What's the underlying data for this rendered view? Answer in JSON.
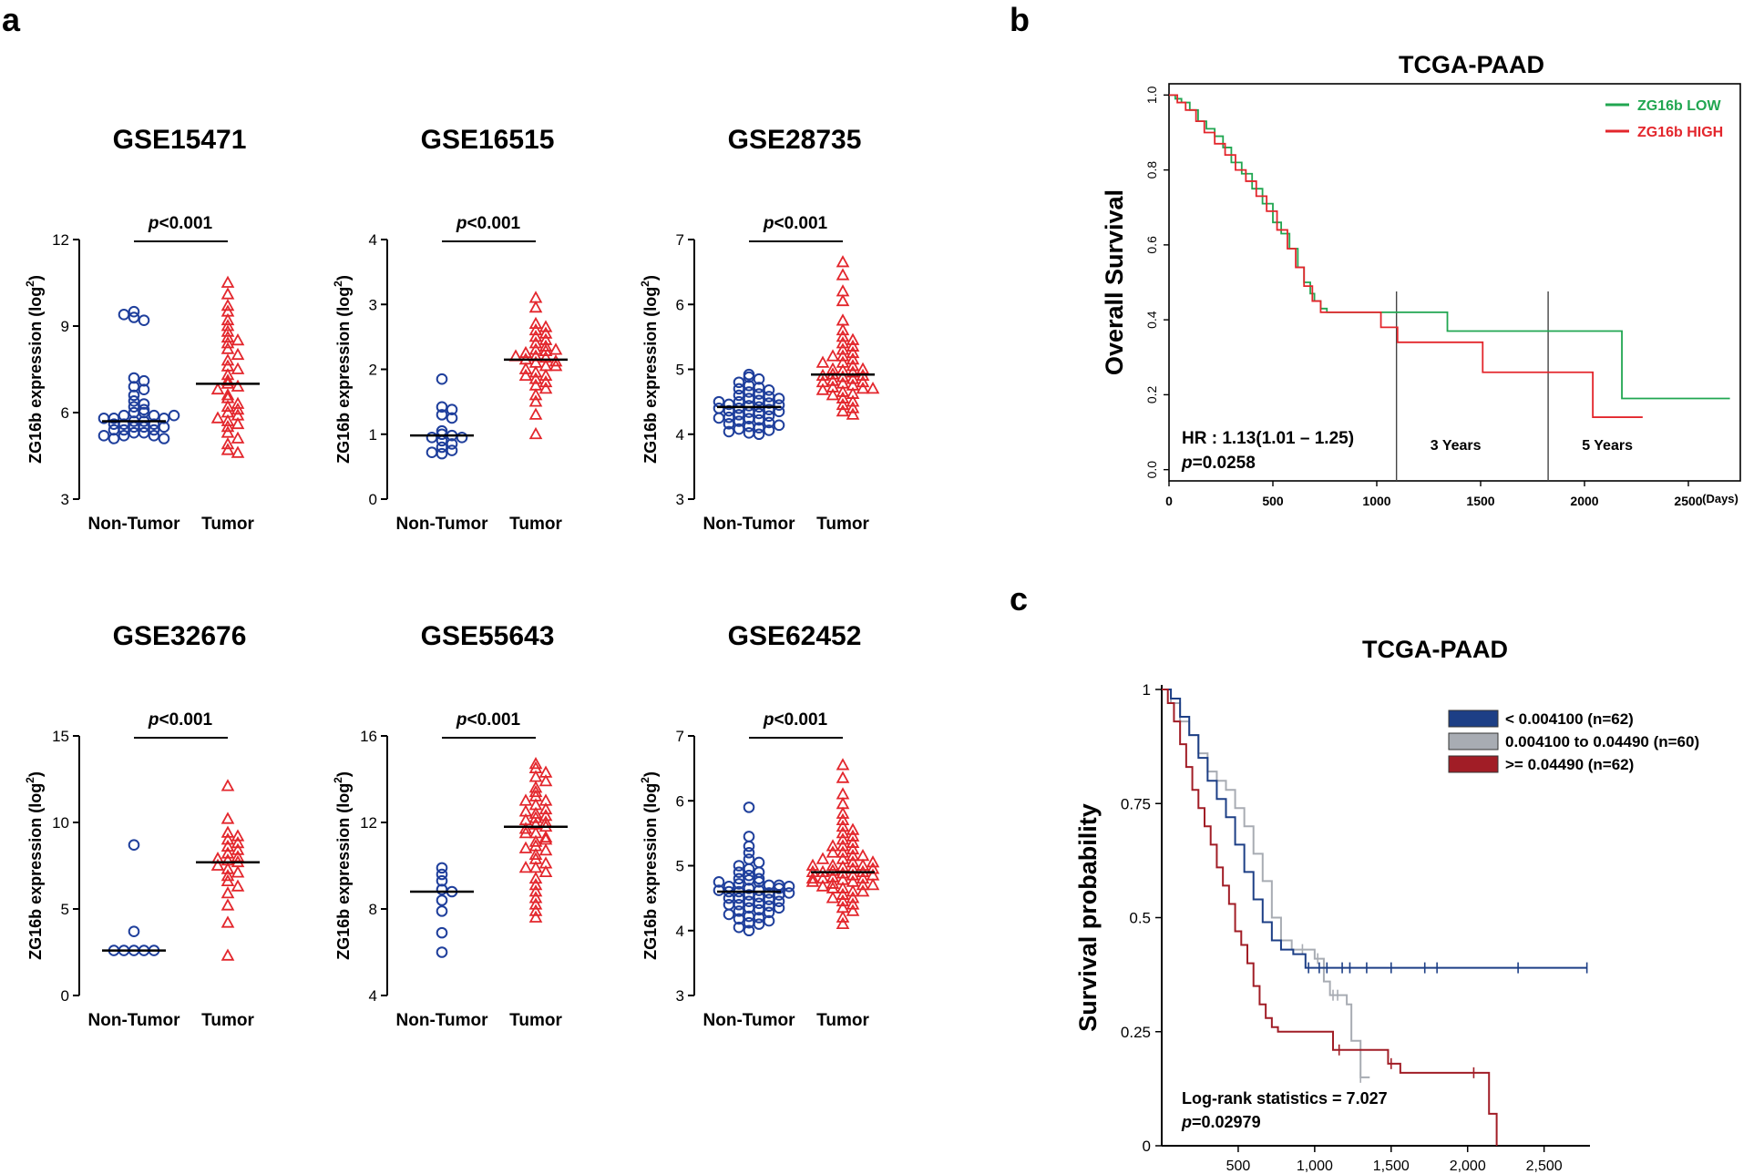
{
  "panel_labels": [
    "a",
    "b",
    "c"
  ],
  "colors": {
    "non_tumor": "#1f3f9c",
    "tumor": "#e3262c",
    "low": "#21a651",
    "high": "#e3262c",
    "grp_low": "#1d3f86",
    "grp_mid": "#a8acb3",
    "grp_high": "#a11d26"
  },
  "chart_data": [
    {
      "type": "scatter",
      "title": "GSE15471",
      "ylabel": "ZG16b expression (log2)",
      "ylim": [
        3,
        12
      ],
      "yticks": [
        3,
        6,
        9,
        12
      ],
      "categories": [
        "Non-Tumor",
        "Tumor"
      ],
      "pvalue": "p<0.001",
      "series": [
        {
          "name": "Non-Tumor",
          "marker": "circle",
          "median": 5.7,
          "values": [
            9.5,
            9.3,
            9.2,
            9.4,
            7.2,
            7.1,
            6.9,
            6.8,
            6.6,
            6.4,
            6.2,
            6.1,
            6.0,
            6.0,
            5.9,
            5.9,
            5.8,
            5.8,
            5.7,
            5.7,
            5.6,
            5.6,
            5.5,
            5.5,
            5.4,
            5.4,
            5.3,
            5.3,
            5.2,
            5.2,
            5.1,
            5.1,
            5.8,
            5.6,
            5.4,
            5.2,
            5.9,
            6.3,
            5.5
          ]
        },
        {
          "name": "Tumor",
          "marker": "triangle",
          "median": 7.0,
          "values": [
            10.5,
            10.1,
            9.7,
            9.5,
            9.2,
            9.0,
            8.8,
            8.6,
            8.5,
            8.4,
            8.2,
            8.0,
            7.8,
            7.6,
            7.5,
            7.3,
            7.1,
            7.0,
            6.9,
            6.8,
            6.6,
            6.5,
            6.3,
            6.2,
            6.1,
            6.0,
            5.9,
            5.8,
            5.7,
            5.6,
            5.5,
            5.3,
            5.1,
            4.9,
            4.7,
            4.6
          ]
        }
      ]
    },
    {
      "type": "scatter",
      "title": "GSE16515",
      "ylabel": "ZG16b expression (log2)",
      "ylim": [
        0,
        4
      ],
      "yticks": [
        0,
        1,
        2,
        3,
        4
      ],
      "categories": [
        "Non-Tumor",
        "Tumor"
      ],
      "pvalue": "p<0.001",
      "series": [
        {
          "name": "Non-Tumor",
          "marker": "circle",
          "median": 0.98,
          "values": [
            1.85,
            1.42,
            1.38,
            1.3,
            1.25,
            1.05,
            1.0,
            0.98,
            0.95,
            0.9,
            0.85,
            0.8,
            0.75,
            0.72,
            0.7,
            0.95
          ]
        },
        {
          "name": "Tumor",
          "marker": "triangle",
          "median": 2.15,
          "values": [
            3.1,
            2.95,
            2.7,
            2.65,
            2.6,
            2.55,
            2.5,
            2.45,
            2.4,
            2.35,
            2.3,
            2.28,
            2.25,
            2.2,
            2.18,
            2.15,
            2.12,
            2.1,
            2.05,
            2.0,
            1.95,
            1.9,
            1.85,
            1.8,
            1.75,
            1.7,
            1.6,
            1.5,
            1.3,
            1.0,
            2.2,
            2.3,
            2.05,
            1.9
          ]
        }
      ]
    },
    {
      "type": "scatter",
      "title": "GSE28735",
      "ylabel": "ZG16b expression (log2)",
      "ylim": [
        3,
        7
      ],
      "yticks": [
        3,
        4,
        5,
        6,
        7
      ],
      "categories": [
        "Non-Tumor",
        "Tumor"
      ],
      "pvalue": "p<0.001",
      "series": [
        {
          "name": "Non-Tumor",
          "marker": "circle",
          "median": 4.42,
          "values": [
            4.92,
            4.88,
            4.85,
            4.8,
            4.75,
            4.72,
            4.7,
            4.68,
            4.65,
            4.62,
            4.6,
            4.58,
            4.55,
            4.52,
            4.5,
            4.48,
            4.46,
            4.44,
            4.42,
            4.4,
            4.38,
            4.36,
            4.34,
            4.32,
            4.3,
            4.28,
            4.26,
            4.24,
            4.22,
            4.2,
            4.18,
            4.16,
            4.14,
            4.12,
            4.1,
            4.08,
            4.06,
            4.04,
            4.02,
            4.0,
            4.45,
            4.35,
            4.55,
            4.25,
            4.5,
            4.4
          ]
        },
        {
          "name": "Tumor",
          "marker": "triangle",
          "median": 4.92,
          "values": [
            6.65,
            6.45,
            6.2,
            6.05,
            5.75,
            5.6,
            5.5,
            5.45,
            5.4,
            5.35,
            5.3,
            5.25,
            5.2,
            5.15,
            5.1,
            5.05,
            5.0,
            4.98,
            4.95,
            4.92,
            4.9,
            4.88,
            4.85,
            4.82,
            4.8,
            4.78,
            4.75,
            4.72,
            4.7,
            4.68,
            4.65,
            4.62,
            4.6,
            4.55,
            4.5,
            4.45,
            4.4,
            4.35,
            4.3,
            5.0,
            4.9,
            5.1,
            4.8,
            5.2,
            4.7
          ]
        }
      ]
    },
    {
      "type": "scatter",
      "title": "GSE32676",
      "ylabel": "ZG16b expression (log2)",
      "ylim": [
        0,
        15
      ],
      "yticks": [
        0,
        5,
        10,
        15
      ],
      "categories": [
        "Non-Tumor",
        "Tumor"
      ],
      "pvalue": "p<0.001",
      "series": [
        {
          "name": "Non-Tumor",
          "marker": "circle",
          "median": 2.6,
          "values": [
            8.7,
            3.7,
            2.6,
            2.6,
            2.6,
            2.6,
            2.6
          ]
        },
        {
          "name": "Tumor",
          "marker": "triangle",
          "median": 7.7,
          "values": [
            12.1,
            10.2,
            9.4,
            9.2,
            9.0,
            8.8,
            8.6,
            8.4,
            8.2,
            8.0,
            7.9,
            7.8,
            7.7,
            7.5,
            7.3,
            7.1,
            6.9,
            6.6,
            6.3,
            5.9,
            5.2,
            4.2,
            2.3
          ]
        }
      ]
    },
    {
      "type": "scatter",
      "title": "GSE55643",
      "ylabel": "ZG16b expression (log2)",
      "ylim": [
        4,
        16
      ],
      "yticks": [
        4,
        8,
        12,
        16
      ],
      "categories": [
        "Non-Tumor",
        "Tumor"
      ],
      "pvalue": "p<0.001",
      "series": [
        {
          "name": "Non-Tumor",
          "marker": "circle",
          "median": 8.8,
          "values": [
            9.9,
            9.6,
            9.3,
            8.9,
            8.8,
            8.4,
            7.9,
            6.9,
            6.0
          ]
        },
        {
          "name": "Tumor",
          "marker": "triangle",
          "median": 11.8,
          "values": [
            14.7,
            14.5,
            14.3,
            14.1,
            13.9,
            13.6,
            13.4,
            13.2,
            13.0,
            12.8,
            12.6,
            12.4,
            12.3,
            12.2,
            12.0,
            11.9,
            11.8,
            11.7,
            11.5,
            11.3,
            11.1,
            10.9,
            10.7,
            10.5,
            10.3,
            10.1,
            9.9,
            9.7,
            9.4,
            9.1,
            8.8,
            8.5,
            8.2,
            7.9,
            7.6,
            12.5,
            11.5,
            13.0,
            10.8,
            12.1,
            11.2,
            9.9
          ]
        }
      ]
    },
    {
      "type": "scatter",
      "title": "GSE62452",
      "ylabel": "ZG16b expression (log2)",
      "ylim": [
        3,
        7
      ],
      "yticks": [
        3,
        4,
        5,
        6,
        7
      ],
      "categories": [
        "Non-Tumor",
        "Tumor"
      ],
      "pvalue": "p<0.001",
      "series": [
        {
          "name": "Non-Tumor",
          "marker": "circle",
          "median": 4.6,
          "values": [
            5.9,
            5.45,
            5.3,
            5.2,
            5.1,
            5.05,
            5.0,
            4.95,
            4.9,
            4.85,
            4.8,
            4.78,
            4.75,
            4.72,
            4.7,
            4.68,
            4.65,
            4.62,
            4.6,
            4.58,
            4.55,
            4.52,
            4.5,
            4.48,
            4.45,
            4.42,
            4.4,
            4.38,
            4.35,
            4.32,
            4.3,
            4.28,
            4.25,
            4.22,
            4.2,
            4.18,
            4.15,
            4.12,
            4.1,
            4.05,
            4.0,
            4.6,
            4.7,
            4.5,
            4.8,
            4.4,
            4.65,
            4.55,
            4.75,
            4.45,
            4.9,
            4.35,
            4.62,
            4.58,
            4.68
          ]
        },
        {
          "name": "Tumor",
          "marker": "triangle",
          "median": 4.9,
          "values": [
            6.55,
            6.35,
            6.1,
            5.95,
            5.8,
            5.7,
            5.6,
            5.55,
            5.5,
            5.45,
            5.4,
            5.35,
            5.3,
            5.25,
            5.2,
            5.15,
            5.1,
            5.05,
            5.0,
            4.98,
            4.95,
            4.92,
            4.9,
            4.88,
            4.85,
            4.82,
            4.8,
            4.78,
            4.75,
            4.72,
            4.7,
            4.68,
            4.65,
            4.6,
            4.55,
            4.5,
            4.45,
            4.4,
            4.35,
            4.3,
            4.2,
            4.1,
            5.0,
            4.9,
            5.1,
            4.8,
            5.2,
            4.7,
            4.95,
            4.85,
            5.05,
            4.75,
            5.15,
            4.65,
            4.6,
            5.3,
            4.5,
            4.9,
            4.8,
            5.0
          ]
        }
      ]
    },
    {
      "type": "line",
      "title": "TCGA-PAAD",
      "ylabel": "Overall Survival",
      "xlabel": "(Days)",
      "xlim": [
        0,
        2750
      ],
      "ylim": [
        -0.03,
        1.03
      ],
      "xticks": [
        0,
        500,
        1000,
        1500,
        2000,
        2500
      ],
      "yticks": [
        "0.0",
        "0.2",
        "0.4",
        "0.6",
        "0.8",
        "1.0"
      ],
      "vlines": [
        {
          "x": 1095,
          "label": "3 Years"
        },
        {
          "x": 1825,
          "label": "5 Years"
        }
      ],
      "annotation": {
        "hr": "HR : 1.13(1.01 – 1.25)",
        "p": "p=0.0258"
      },
      "series": [
        {
          "name": "ZG16b LOW",
          "color_key": "low",
          "x": [
            0,
            30,
            60,
            100,
            140,
            180,
            220,
            260,
            300,
            350,
            400,
            450,
            500,
            540,
            580,
            620,
            650,
            680,
            700,
            730,
            760,
            800,
            1100,
            1340,
            2180,
            2700
          ],
          "y": [
            1.0,
            0.99,
            0.98,
            0.96,
            0.93,
            0.91,
            0.89,
            0.86,
            0.82,
            0.79,
            0.75,
            0.71,
            0.66,
            0.63,
            0.59,
            0.54,
            0.5,
            0.47,
            0.45,
            0.43,
            0.42,
            0.42,
            0.42,
            0.37,
            0.19,
            0.19
          ]
        },
        {
          "name": "ZG16b HIGH",
          "color_key": "high",
          "x": [
            0,
            40,
            80,
            130,
            170,
            220,
            270,
            320,
            370,
            420,
            470,
            520,
            570,
            610,
            650,
            690,
            730,
            1020,
            1100,
            1510,
            2040,
            2280
          ],
          "y": [
            1.0,
            0.98,
            0.96,
            0.93,
            0.9,
            0.87,
            0.84,
            0.8,
            0.77,
            0.73,
            0.69,
            0.64,
            0.59,
            0.54,
            0.49,
            0.45,
            0.42,
            0.38,
            0.34,
            0.26,
            0.14,
            0.14
          ]
        }
      ]
    },
    {
      "type": "line",
      "title": "TCGA-PAAD",
      "ylabel": "Survival probability",
      "xlim": [
        0,
        2800
      ],
      "ylim": [
        0,
        1
      ],
      "xticks": [
        "500",
        "1,000",
        "1,500",
        "2,000",
        "2,500"
      ],
      "xtick_values": [
        500,
        1000,
        1500,
        2000,
        2500
      ],
      "yticks": [
        "0",
        "0.25",
        "0.5",
        "0.75",
        "1"
      ],
      "ytick_values": [
        0,
        0.25,
        0.5,
        0.75,
        1
      ],
      "annotation": {
        "stat": "Log-rank statistics = 7.027",
        "p": "p=0.02979"
      },
      "series": [
        {
          "name": "< 0.004100 (n=62)",
          "color_key": "grp_low",
          "x": [
            0,
            60,
            120,
            180,
            240,
            300,
            360,
            420,
            480,
            540,
            600,
            660,
            720,
            780,
            860,
            940,
            2780
          ],
          "y": [
            1.0,
            0.98,
            0.94,
            0.9,
            0.85,
            0.8,
            0.76,
            0.72,
            0.66,
            0.6,
            0.54,
            0.49,
            0.45,
            0.43,
            0.42,
            0.39,
            0.39
          ],
          "censor_x": [
            960,
            1030,
            1080,
            1180,
            1230,
            1340,
            1500,
            1720,
            1800,
            2330,
            2780
          ]
        },
        {
          "name": "0.004100 to 0.04490 (n=60)",
          "color_key": "grp_mid",
          "x": [
            0,
            60,
            120,
            180,
            240,
            300,
            360,
            420,
            480,
            540,
            600,
            660,
            720,
            780,
            850,
            920,
            1000,
            1060,
            1100,
            1210,
            1240,
            1300,
            1360
          ],
          "y": [
            1.0,
            0.97,
            0.93,
            0.9,
            0.86,
            0.82,
            0.8,
            0.78,
            0.74,
            0.7,
            0.64,
            0.58,
            0.5,
            0.45,
            0.43,
            0.43,
            0.41,
            0.36,
            0.33,
            0.31,
            0.23,
            0.15,
            0.15
          ],
          "censor_x": [
            920,
            1020,
            1120,
            1150,
            1300
          ]
        },
        {
          "name": ">= 0.04490 (n=62)",
          "color_key": "grp_high",
          "x": [
            0,
            40,
            80,
            120,
            160,
            200,
            240,
            280,
            320,
            360,
            400,
            440,
            480,
            520,
            560,
            600,
            640,
            680,
            720,
            760,
            1120,
            1480,
            1560,
            2040,
            2140,
            2190
          ],
          "y": [
            1.0,
            0.97,
            0.93,
            0.88,
            0.83,
            0.78,
            0.74,
            0.7,
            0.66,
            0.61,
            0.57,
            0.53,
            0.47,
            0.44,
            0.4,
            0.35,
            0.31,
            0.28,
            0.26,
            0.25,
            0.21,
            0.18,
            0.16,
            0.16,
            0.07,
            0.0
          ],
          "censor_x": [
            1160,
            1500,
            2040
          ]
        }
      ]
    }
  ]
}
